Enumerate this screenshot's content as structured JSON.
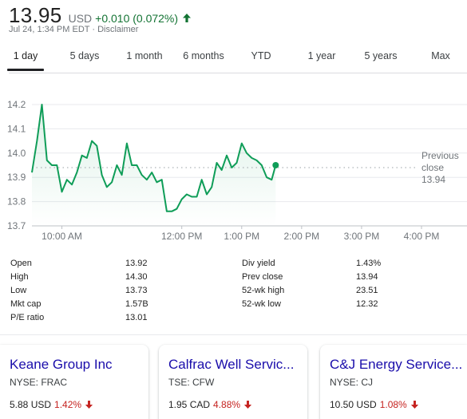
{
  "header": {
    "price": "13.95",
    "currency": "USD",
    "change": "+0.010 (0.072%)",
    "timestamp": "Jul 24, 1:34 PM EDT",
    "separator": "·",
    "disclaimer": "Disclaimer"
  },
  "tabs": [
    {
      "label": "1 day",
      "active": true
    },
    {
      "label": "5 days"
    },
    {
      "label": "1 month"
    },
    {
      "label": "6 months"
    },
    {
      "label": "YTD"
    },
    {
      "label": "1 year"
    },
    {
      "label": "5 years"
    },
    {
      "label": "Max"
    }
  ],
  "chart_data": {
    "type": "line",
    "y_ticks": [
      "14.2",
      "14.1",
      "14.0",
      "13.9",
      "13.8",
      "13.7"
    ],
    "y_tick_values": [
      14.2,
      14.1,
      14.0,
      13.9,
      13.8,
      13.7
    ],
    "ylim": [
      13.7,
      14.2
    ],
    "x_ticks": [
      "10:00 AM",
      "12:00 PM",
      "1:00 PM",
      "2:00 PM",
      "3:00 PM",
      "4:00 PM"
    ],
    "x_tick_values": [
      "10:00",
      "12:00",
      "13:00",
      "14:00",
      "15:00",
      "16:00"
    ],
    "xlim": [
      "09:30",
      "16:00"
    ],
    "series": [
      {
        "color": "#0f9d58",
        "points": [
          [
            "09:30",
            13.92
          ],
          [
            "09:35",
            14.05
          ],
          [
            "09:40",
            14.2
          ],
          [
            "09:45",
            13.97
          ],
          [
            "09:50",
            13.95
          ],
          [
            "09:55",
            13.95
          ],
          [
            "10:00",
            13.84
          ],
          [
            "10:05",
            13.89
          ],
          [
            "10:10",
            13.87
          ],
          [
            "10:15",
            13.92
          ],
          [
            "10:20",
            13.99
          ],
          [
            "10:25",
            13.98
          ],
          [
            "10:30",
            14.05
          ],
          [
            "10:35",
            14.03
          ],
          [
            "10:40",
            13.91
          ],
          [
            "10:45",
            13.86
          ],
          [
            "10:50",
            13.88
          ],
          [
            "10:55",
            13.95
          ],
          [
            "11:00",
            13.91
          ],
          [
            "11:05",
            14.04
          ],
          [
            "11:10",
            13.95
          ],
          [
            "11:15",
            13.95
          ],
          [
            "11:20",
            13.91
          ],
          [
            "11:25",
            13.89
          ],
          [
            "11:30",
            13.92
          ],
          [
            "11:35",
            13.88
          ],
          [
            "11:40",
            13.89
          ],
          [
            "11:45",
            13.76
          ],
          [
            "11:50",
            13.76
          ],
          [
            "11:55",
            13.77
          ],
          [
            "12:00",
            13.81
          ],
          [
            "12:05",
            13.83
          ],
          [
            "12:10",
            13.82
          ],
          [
            "12:15",
            13.82
          ],
          [
            "12:20",
            13.89
          ],
          [
            "12:25",
            13.83
          ],
          [
            "12:30",
            13.86
          ],
          [
            "12:35",
            13.96
          ],
          [
            "12:40",
            13.93
          ],
          [
            "12:45",
            13.99
          ],
          [
            "12:50",
            13.94
          ],
          [
            "12:55",
            13.96
          ],
          [
            "13:00",
            14.04
          ],
          [
            "13:05",
            14.0
          ],
          [
            "13:10",
            13.98
          ],
          [
            "13:15",
            13.97
          ],
          [
            "13:20",
            13.95
          ],
          [
            "13:25",
            13.9
          ],
          [
            "13:30",
            13.89
          ],
          [
            "13:34",
            13.95
          ]
        ]
      }
    ],
    "previous_close": {
      "label_line1": "Previous",
      "label_line2": "close",
      "value": "13.94",
      "y": 13.94
    },
    "grid": true,
    "legend": "none"
  },
  "stats": {
    "left": [
      {
        "label": "Open",
        "value": "13.92"
      },
      {
        "label": "High",
        "value": "14.30"
      },
      {
        "label": "Low",
        "value": "13.73"
      },
      {
        "label": "Mkt cap",
        "value": "1.57B"
      },
      {
        "label": "P/E ratio",
        "value": "13.01"
      }
    ],
    "right": [
      {
        "label": "Div yield",
        "value": "1.43%"
      },
      {
        "label": "Prev close",
        "value": "13.94"
      },
      {
        "label": "52-wk high",
        "value": "23.51"
      },
      {
        "label": "52-wk low",
        "value": "12.32"
      }
    ]
  },
  "related": [
    {
      "name": "Keane Group Inc",
      "exchange": "NYSE: FRAC",
      "price": "5.88 USD",
      "change": "1.42%"
    },
    {
      "name": "Calfrac Well Servic...",
      "exchange": "TSE: CFW",
      "price": "1.95 CAD",
      "change": "4.88%"
    },
    {
      "name": "C&J Energy Service...",
      "exchange": "NYSE: CJ",
      "price": "10.50 USD",
      "change": "1.08%"
    }
  ],
  "colors": {
    "positive": "#137333",
    "negative": "#c5221f",
    "line": "#0f9d58",
    "link": "#1a0dab"
  }
}
